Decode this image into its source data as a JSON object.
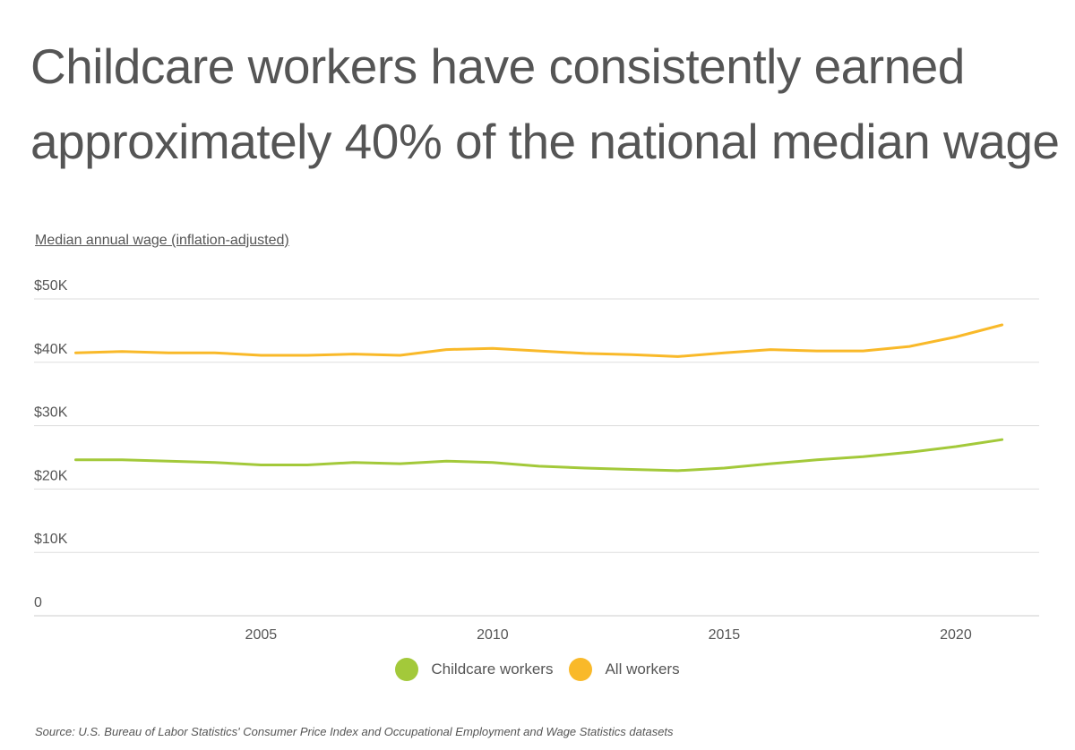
{
  "title": "Childcare workers have consistently earned approximately 40% of the national median wage",
  "subtitle": "Median annual wage (inflation-adjusted)",
  "source": "Source:  U.S. Bureau of Labor Statistics' Consumer Price Index and Occupational Employment and Wage Statistics datasets",
  "colors": {
    "childcare": "#a3c93a",
    "all": "#f9b929",
    "grid": "#dddddd",
    "axis": "#cccccc",
    "text": "#555555"
  },
  "chart_data": {
    "type": "line",
    "x": [
      2001,
      2002,
      2003,
      2004,
      2005,
      2006,
      2007,
      2008,
      2009,
      2010,
      2011,
      2012,
      2013,
      2014,
      2015,
      2016,
      2017,
      2018,
      2019,
      2020,
      2021
    ],
    "series": [
      {
        "name": "Childcare workers",
        "color": "#a3c93a",
        "values": [
          24600,
          24600,
          24400,
          24200,
          23800,
          23800,
          24200,
          24000,
          24400,
          24200,
          23600,
          23300,
          23100,
          22900,
          23300,
          24000,
          24600,
          25100,
          25800,
          26700,
          27800
        ]
      },
      {
        "name": "All workers",
        "color": "#f9b929",
        "values": [
          41500,
          41700,
          41500,
          41500,
          41100,
          41100,
          41300,
          41100,
          42000,
          42200,
          41800,
          41400,
          41200,
          40900,
          41500,
          42000,
          41800,
          41800,
          42500,
          44000,
          45900
        ]
      }
    ],
    "ylim": [
      0,
      50000
    ],
    "yticks": [
      {
        "value": 50000,
        "label": "$50K"
      },
      {
        "value": 40000,
        "label": "$40K"
      },
      {
        "value": 30000,
        "label": "$30K"
      },
      {
        "value": 20000,
        "label": "$20K"
      },
      {
        "value": 10000,
        "label": "$10K"
      },
      {
        "value": 0,
        "label": "0"
      }
    ],
    "xlim": [
      2000.1,
      2021.8
    ],
    "xticks": [
      {
        "value": 2005,
        "label": "2005"
      },
      {
        "value": 2010,
        "label": "2010"
      },
      {
        "value": 2015,
        "label": "2015"
      },
      {
        "value": 2020,
        "label": "2020"
      }
    ],
    "grid": true,
    "legend_position": "bottom-center"
  }
}
